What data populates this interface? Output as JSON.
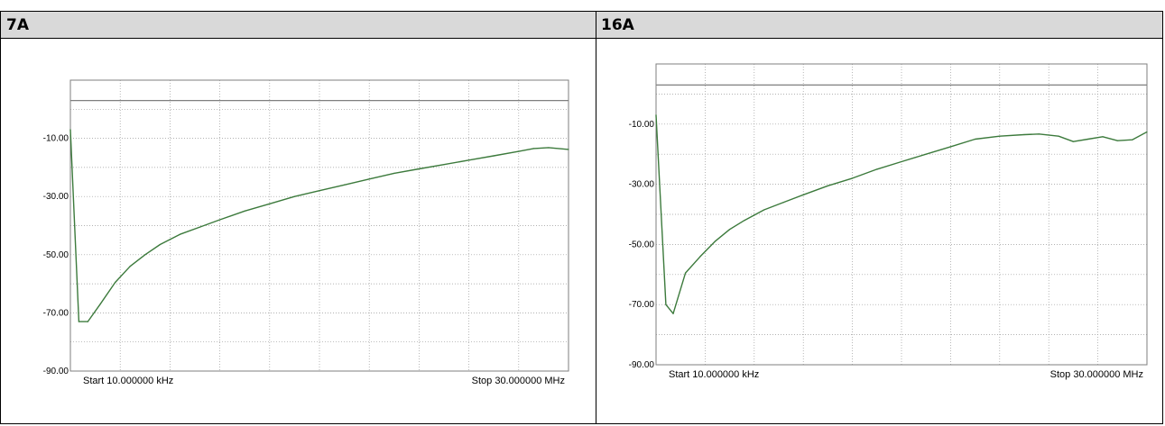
{
  "panels": [
    {
      "id": "7A",
      "header": "7A"
    },
    {
      "id": "16A",
      "header": "16A"
    }
  ],
  "chart_data": [
    {
      "type": "line",
      "title": "",
      "xlabel": "",
      "ylabel": "",
      "start_label": "Start 10.000000 kHz",
      "stop_label": "Stop 30.000000 MHz",
      "y_tick_labels": [
        "-10.00",
        "-30.00",
        "-50.00",
        "-70.00",
        "-90.00"
      ],
      "ylim": [
        -90,
        10
      ],
      "x_unit": "fraction of sweep",
      "grid": true,
      "reference_line": 3,
      "series_color": "#3c7a3c",
      "series": [
        {
          "name": "",
          "x": [
            0,
            0.017,
            0.035,
            0.06,
            0.09,
            0.12,
            0.15,
            0.18,
            0.22,
            0.26,
            0.3,
            0.35,
            0.4,
            0.45,
            0.5,
            0.55,
            0.6,
            0.65,
            0.7,
            0.75,
            0.8,
            0.85,
            0.9,
            0.93,
            0.96,
            1.0
          ],
          "y": [
            -7,
            -73,
            -73,
            -67,
            -59.5,
            -54,
            -50,
            -46.5,
            -43,
            -40.5,
            -38,
            -35,
            -32.5,
            -30,
            -28,
            -26,
            -24,
            -22,
            -20.5,
            -19,
            -17.5,
            -16,
            -14.5,
            -13.5,
            -13.2,
            -13.8
          ]
        }
      ]
    },
    {
      "type": "line",
      "title": "",
      "xlabel": "",
      "ylabel": "",
      "start_label": "Start 10.000000 kHz",
      "stop_label": "Stop 30.000000 MHz",
      "y_tick_labels": [
        "-10.00",
        "-30.00",
        "-50.00",
        "-70.00",
        "-90.00"
      ],
      "ylim": [
        -90,
        10
      ],
      "x_unit": "fraction of sweep",
      "grid": true,
      "reference_line": 3,
      "series_color": "#3c7a3c",
      "series": [
        {
          "name": "",
          "x": [
            0,
            0.02,
            0.035,
            0.06,
            0.09,
            0.12,
            0.15,
            0.18,
            0.22,
            0.26,
            0.3,
            0.35,
            0.4,
            0.45,
            0.5,
            0.55,
            0.6,
            0.65,
            0.7,
            0.75,
            0.78,
            0.82,
            0.85,
            0.88,
            0.91,
            0.94,
            0.97,
            1.0
          ],
          "y": [
            -7,
            -70,
            -73,
            -59.5,
            -54,
            -49,
            -45,
            -42,
            -38.5,
            -36,
            -33.5,
            -30.5,
            -28,
            -25,
            -22.5,
            -20,
            -17.5,
            -15,
            -14,
            -13.5,
            -13.3,
            -14,
            -15.8,
            -15,
            -14.2,
            -15.5,
            -15.2,
            -12.6
          ]
        }
      ]
    }
  ]
}
